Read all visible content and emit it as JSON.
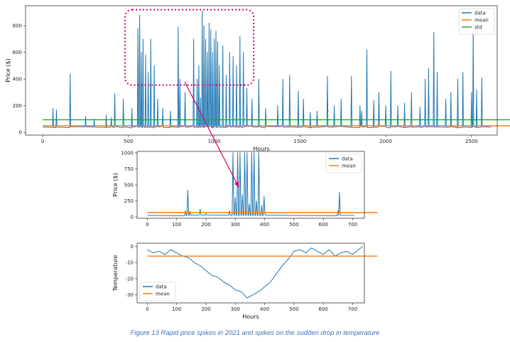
{
  "caption": "Figure 13  Rapid price spikes in 2021 and spikes on the sudden drop in temperature",
  "colors": {
    "data": "#1f77b4",
    "mean": "#ff7f0e",
    "std": "#2ca02c",
    "highlight": "#d6006e"
  },
  "chart_data": [
    {
      "type": "line",
      "xlabel": "Hours",
      "ylabel": "Price ($)",
      "xlim": [
        -100,
        2650
      ],
      "ylim": [
        -20,
        950
      ],
      "xticks": [
        0,
        500,
        1000,
        1500,
        2000,
        2500
      ],
      "yticks": [
        0,
        200,
        400,
        600,
        800
      ],
      "legend_position": "top-right",
      "series": [
        {
          "name": "data",
          "color": "#1f77b4",
          "baseline": 40,
          "spikes": [
            [
              60,
              180
            ],
            [
              80,
              170
            ],
            [
              160,
              440
            ],
            [
              250,
              120
            ],
            [
              300,
              100
            ],
            [
              370,
              130
            ],
            [
              400,
              110
            ],
            [
              420,
              290
            ],
            [
              470,
              250
            ],
            [
              520,
              180
            ],
            [
              555,
              780
            ],
            [
              565,
              880
            ],
            [
              575,
              600
            ],
            [
              585,
              700
            ],
            [
              600,
              580
            ],
            [
              615,
              450
            ],
            [
              630,
              700
            ],
            [
              650,
              500
            ],
            [
              670,
              250
            ],
            [
              700,
              180
            ],
            [
              745,
              160
            ],
            [
              790,
              790
            ],
            [
              800,
              400
            ],
            [
              830,
              300
            ],
            [
              880,
              700
            ],
            [
              900,
              400
            ],
            [
              910,
              500
            ],
            [
              920,
              260
            ],
            [
              930,
              910
            ],
            [
              940,
              800
            ],
            [
              950,
              700
            ],
            [
              960,
              600
            ],
            [
              970,
              820
            ],
            [
              980,
              770
            ],
            [
              990,
              600
            ],
            [
              1000,
              700
            ],
            [
              1010,
              760
            ],
            [
              1020,
              680
            ],
            [
              1030,
              500
            ],
            [
              1050,
              650
            ],
            [
              1070,
              430
            ],
            [
              1090,
              600
            ],
            [
              1110,
              570
            ],
            [
              1130,
              500
            ],
            [
              1150,
              720
            ],
            [
              1170,
              600
            ],
            [
              1190,
              330
            ],
            [
              1220,
              250
            ],
            [
              1260,
              400
            ],
            [
              1300,
              180
            ],
            [
              1370,
              200
            ],
            [
              1400,
              400
            ],
            [
              1440,
              430
            ],
            [
              1490,
              310
            ],
            [
              1520,
              250
            ],
            [
              1560,
              150
            ],
            [
              1600,
              160
            ],
            [
              1660,
              420
            ],
            [
              1700,
              200
            ],
            [
              1740,
              250
            ],
            [
              1800,
              420
            ],
            [
              1850,
              200
            ],
            [
              1860,
              160
            ],
            [
              1890,
              620
            ],
            [
              1930,
              240
            ],
            [
              1960,
              300
            ],
            [
              2000,
              200
            ],
            [
              2030,
              460
            ],
            [
              2070,
              200
            ],
            [
              2110,
              220
            ],
            [
              2150,
              300
            ],
            [
              2200,
              190
            ],
            [
              2230,
              400
            ],
            [
              2250,
              480
            ],
            [
              2280,
              750
            ],
            [
              2300,
              450
            ],
            [
              2350,
              250
            ],
            [
              2380,
              300
            ],
            [
              2420,
              400
            ],
            [
              2450,
              450
            ],
            [
              2500,
              300
            ],
            [
              2510,
              780
            ],
            [
              2530,
              320
            ],
            [
              2560,
              410
            ]
          ]
        },
        {
          "name": "mean",
          "color": "#ff7f0e",
          "y": 50
        },
        {
          "name": "std",
          "color": "#2ca02c",
          "y": 95
        }
      ],
      "annotation": {
        "type": "dotted-rectangle",
        "x_range": [
          480,
          1230
        ],
        "y_range": [
          355,
          920
        ]
      }
    },
    {
      "type": "line",
      "xlabel": "",
      "ylabel": "Price ($)",
      "xlim": [
        -35,
        740
      ],
      "ylim": [
        -20,
        1020
      ],
      "xticks": [
        0,
        100,
        200,
        300,
        400,
        500,
        600,
        700
      ],
      "yticks": [
        0,
        250,
        500,
        750,
        1000
      ],
      "legend_position": "top-right",
      "series": [
        {
          "name": "data",
          "color": "#1f77b4",
          "baseline": 25,
          "spikes": [
            [
              130,
              100
            ],
            [
              138,
              420
            ],
            [
              145,
              90
            ],
            [
              180,
              120
            ],
            [
              200,
              50
            ],
            [
              280,
              100
            ],
            [
              292,
              1000
            ],
            [
              300,
              300
            ],
            [
              308,
              1000
            ],
            [
              316,
              1000
            ],
            [
              324,
              350
            ],
            [
              332,
              1000
            ],
            [
              340,
              1000
            ],
            [
              348,
              200
            ],
            [
              356,
              1000
            ],
            [
              364,
              1000
            ],
            [
              372,
              250
            ],
            [
              380,
              1000
            ],
            [
              390,
              180
            ],
            [
              398,
              320
            ],
            [
              650,
              100
            ],
            [
              655,
              380
            ]
          ]
        },
        {
          "name": "mean",
          "color": "#ff7f0e",
          "y": 70
        }
      ]
    },
    {
      "type": "line",
      "xlabel": "Hours",
      "ylabel": "Temperature",
      "xlim": [
        -35,
        740
      ],
      "ylim": [
        -35,
        2
      ],
      "xticks": [
        0,
        100,
        200,
        300,
        400,
        500,
        600,
        700
      ],
      "yticks": [
        0,
        -10,
        -20,
        -30
      ],
      "legend_position": "bottom-left",
      "series": [
        {
          "name": "data",
          "color": "#1f77b4",
          "x": [
            0,
            20,
            40,
            60,
            80,
            100,
            120,
            140,
            160,
            180,
            200,
            220,
            240,
            260,
            280,
            300,
            320,
            340,
            360,
            380,
            400,
            420,
            440,
            460,
            480,
            500,
            520,
            540,
            560,
            580,
            600,
            620,
            640,
            660,
            680,
            700,
            720,
            735
          ],
          "y": [
            -2,
            -4,
            -3,
            -5,
            -2,
            -4,
            -6,
            -7,
            -10,
            -12,
            -15,
            -18,
            -19,
            -22,
            -24,
            -27,
            -28,
            -32,
            -30,
            -28,
            -25,
            -22,
            -17,
            -12,
            -8,
            -3,
            -2,
            -4,
            -1,
            -3,
            -5,
            -2,
            -6,
            -4,
            -3,
            -5,
            -2,
            0
          ]
        },
        {
          "name": "mean",
          "color": "#ff7f0e",
          "y": -6
        }
      ]
    }
  ]
}
